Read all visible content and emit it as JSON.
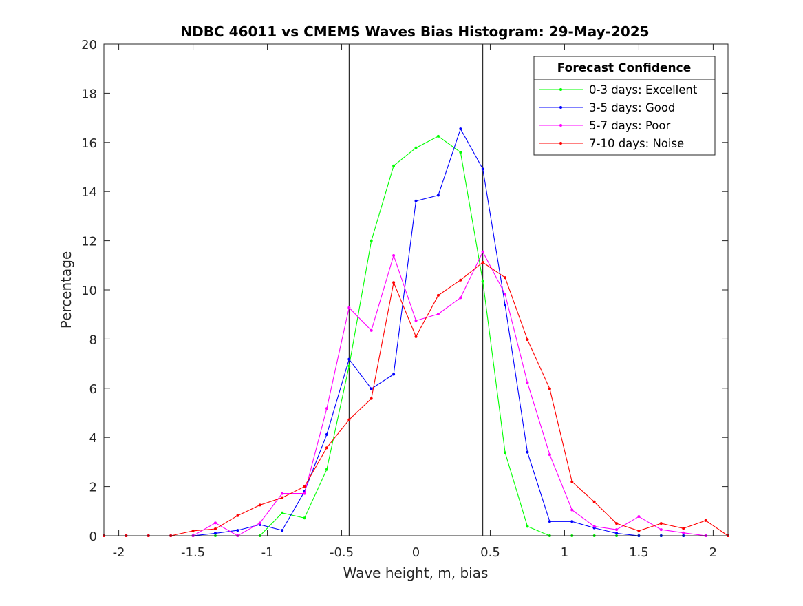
{
  "chart_data": {
    "type": "line",
    "title": "NDBC 46011 vs CMEMS Waves Bias Histogram: 29-May-2025",
    "xlabel": "Wave height, m, bias",
    "ylabel": "Percentage",
    "xlim": [
      -2.1,
      2.1
    ],
    "ylim": [
      0,
      20
    ],
    "x_ticks": [
      -2,
      -1.5,
      -1,
      -0.5,
      0,
      0.5,
      1,
      1.5,
      2
    ],
    "x_tick_labels": [
      "-2",
      "-1.5",
      "-1",
      "-0.5",
      "0",
      "0.5",
      "1",
      "1.5",
      "2"
    ],
    "y_ticks": [
      0,
      2,
      4,
      6,
      8,
      10,
      12,
      14,
      16,
      18,
      20
    ],
    "y_tick_labels": [
      "0",
      "2",
      "4",
      "6",
      "8",
      "10",
      "12",
      "14",
      "16",
      "18",
      "20"
    ],
    "grid": false,
    "vertical_lines": [
      {
        "x": -0.45,
        "style": "solid"
      },
      {
        "x": 0,
        "style": "dotted"
      },
      {
        "x": 0.45,
        "style": "solid"
      }
    ],
    "legend": {
      "title": "Forecast Confidence",
      "placement": "top-right"
    },
    "x": [
      -2.1,
      -1.95,
      -1.8,
      -1.65,
      -1.5,
      -1.35,
      -1.2,
      -1.05,
      -0.9,
      -0.75,
      -0.6,
      -0.45,
      -0.3,
      -0.15,
      0,
      0.15,
      0.3,
      0.45,
      0.6,
      0.75,
      0.9,
      1.05,
      1.2,
      1.35,
      1.5,
      1.65,
      1.8,
      1.95,
      2.1
    ],
    "series": [
      {
        "name": "0-3 days: Excellent",
        "color": "#00ff00",
        "values": [
          0,
          0,
          0,
          0,
          0,
          0,
          0,
          0,
          0.93,
          0.72,
          2.7,
          6.9,
          12.0,
          15.05,
          15.78,
          16.25,
          15.6,
          10.35,
          3.38,
          0.38,
          0,
          0,
          0,
          0,
          0,
          0,
          0,
          0,
          0
        ]
      },
      {
        "name": "3-5 days: Good",
        "color": "#0000ff",
        "values": [
          0,
          0,
          0,
          0,
          0,
          0.1,
          0.22,
          0.45,
          0.22,
          1.8,
          4.12,
          7.18,
          5.98,
          6.57,
          13.62,
          13.85,
          16.55,
          14.92,
          9.38,
          3.4,
          0.58,
          0.58,
          0.32,
          0.1,
          0,
          0,
          0,
          0,
          0
        ]
      },
      {
        "name": "5-7 days: Poor",
        "color": "#ff00ff",
        "values": [
          0,
          0,
          0,
          0,
          0,
          0.52,
          0,
          0.52,
          1.72,
          1.72,
          5.18,
          9.28,
          8.35,
          11.4,
          8.75,
          9.02,
          9.68,
          11.55,
          9.82,
          6.23,
          3.3,
          1.05,
          0.38,
          0.25,
          0.78,
          0.25,
          0.12,
          0,
          0
        ]
      },
      {
        "name": "7-10 days: Noise",
        "color": "#ff0000",
        "values": [
          0,
          0,
          0,
          0,
          0.2,
          0.28,
          0.82,
          1.25,
          1.55,
          2.0,
          3.58,
          4.72,
          5.58,
          10.3,
          8.1,
          9.78,
          10.4,
          11.12,
          10.5,
          7.98,
          5.98,
          2.2,
          1.38,
          0.5,
          0.2,
          0.5,
          0.3,
          0.62,
          0
        ]
      }
    ]
  }
}
